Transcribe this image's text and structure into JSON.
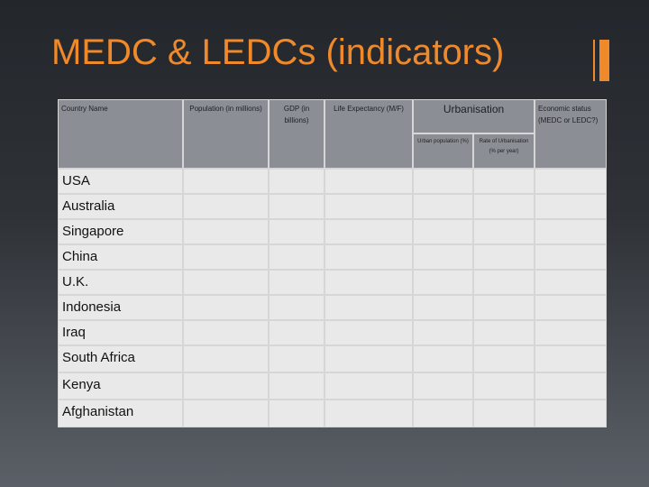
{
  "header": {
    "title": "MEDC & LEDCs (indicators)"
  },
  "table": {
    "columns": [
      "Country Name",
      "Population (in millions)",
      "GDP (in billions)",
      "Life Expectancy (M/F)",
      "Urbanisation",
      "Economic status (MEDC or LEDC?)"
    ],
    "urbanisation_subcolumns": [
      "Urban population (%)",
      "Rate of Urbanisation (% per year)"
    ],
    "rows": [
      "USA",
      "Australia",
      "Singapore",
      "China",
      "U.K.",
      "Indonesia",
      "Iraq",
      "South Africa",
      "Kenya",
      "Afghanistan"
    ]
  }
}
